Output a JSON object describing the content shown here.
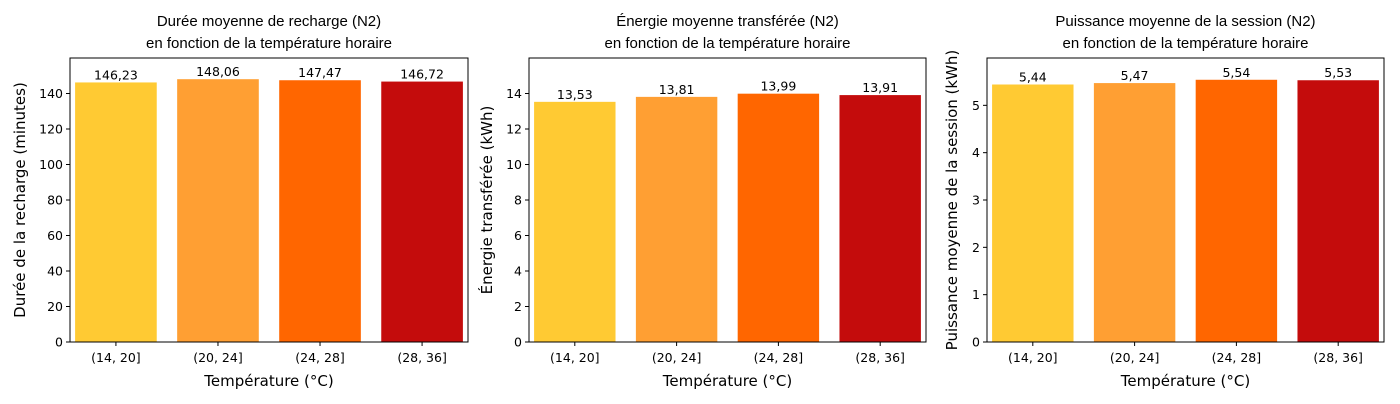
{
  "colors": [
    "#FFCA33",
    "#FF9F33",
    "#FF6600",
    "#C40C0C"
  ],
  "chart_data": [
    {
      "type": "bar",
      "title": [
        "Durée moyenne de recharge (N2)",
        "en fonction de la température horaire"
      ],
      "xlabel": "Température (°C)",
      "ylabel": "Durée de la recharge (minutes)",
      "categories": [
        "(14, 20]",
        "(20, 24]",
        "(24, 28]",
        "(28, 36]"
      ],
      "values": [
        146.23,
        148.06,
        147.47,
        146.72
      ],
      "value_labels": [
        "146,23",
        "148,06",
        "147,47",
        "146,72"
      ],
      "ylim": [
        0,
        160
      ],
      "yticks": [
        0,
        20,
        40,
        60,
        80,
        100,
        120,
        140
      ],
      "grid": false
    },
    {
      "type": "bar",
      "title": [
        "Énergie moyenne transférée (N2)",
        "en fonction de la température horaire"
      ],
      "xlabel": "Température (°C)",
      "ylabel": "Énergie transférée (kWh)",
      "categories": [
        "(14, 20]",
        "(20, 24]",
        "(24, 28]",
        "(28, 36]"
      ],
      "values": [
        13.53,
        13.81,
        13.99,
        13.91
      ],
      "value_labels": [
        "13,53",
        "13,81",
        "13,99",
        "13,91"
      ],
      "ylim": [
        0,
        16
      ],
      "yticks": [
        0,
        2,
        4,
        6,
        8,
        10,
        12,
        14
      ],
      "grid": false
    },
    {
      "type": "bar",
      "title": [
        "Puissance moyenne de la session (N2)",
        "en fonction de la température horaire"
      ],
      "xlabel": "Température (°C)",
      "ylabel": "Puissance moyenne de la session (kWh)",
      "categories": [
        "(14, 20]",
        "(20, 24]",
        "(24, 28]",
        "(28, 36]"
      ],
      "values": [
        5.44,
        5.47,
        5.54,
        5.53
      ],
      "value_labels": [
        "5,44",
        "5,47",
        "5,54",
        "5,53"
      ],
      "ylim": [
        0,
        6
      ],
      "yticks": [
        0,
        1,
        2,
        3,
        4,
        5
      ],
      "grid": false
    }
  ]
}
